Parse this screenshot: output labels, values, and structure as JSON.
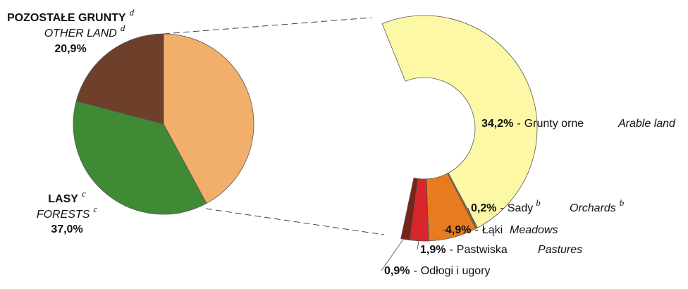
{
  "chart_data": [
    {
      "type": "pie",
      "categories": [
        null,
        "LASY",
        "POZOSTAŁE GRUNTY"
      ],
      "categories_en": [
        null,
        "FORESTS",
        "OTHER LAND"
      ],
      "notes": [
        null,
        "c",
        "d"
      ],
      "values": [
        42.1,
        37.0,
        20.9
      ],
      "value_labels": [
        null,
        "37,0%",
        "20,9%"
      ],
      "colors": [
        "#f2ae6b",
        "#3f8a34",
        "#6e3f2a"
      ]
    },
    {
      "type": "ring",
      "categories": [
        "Grunty orne",
        "Sady",
        "Łąki",
        "Pastwiska",
        "Odłogi i ugory"
      ],
      "categories_en": [
        "Arable land",
        "Orchards",
        "Meadows",
        "Pastures",
        null
      ],
      "notes": [
        null,
        "b",
        null,
        null,
        null
      ],
      "separator": "-",
      "values": [
        34.2,
        0.2,
        4.9,
        1.9,
        0.9
      ],
      "value_labels": [
        "34,2%",
        "0,2%",
        "4,9%",
        "1,9%",
        "0,9%"
      ],
      "colors": [
        "#fdf8a6",
        "#b5681e",
        "#e67c1f",
        "#d8262b",
        "#7a2418"
      ]
    }
  ]
}
